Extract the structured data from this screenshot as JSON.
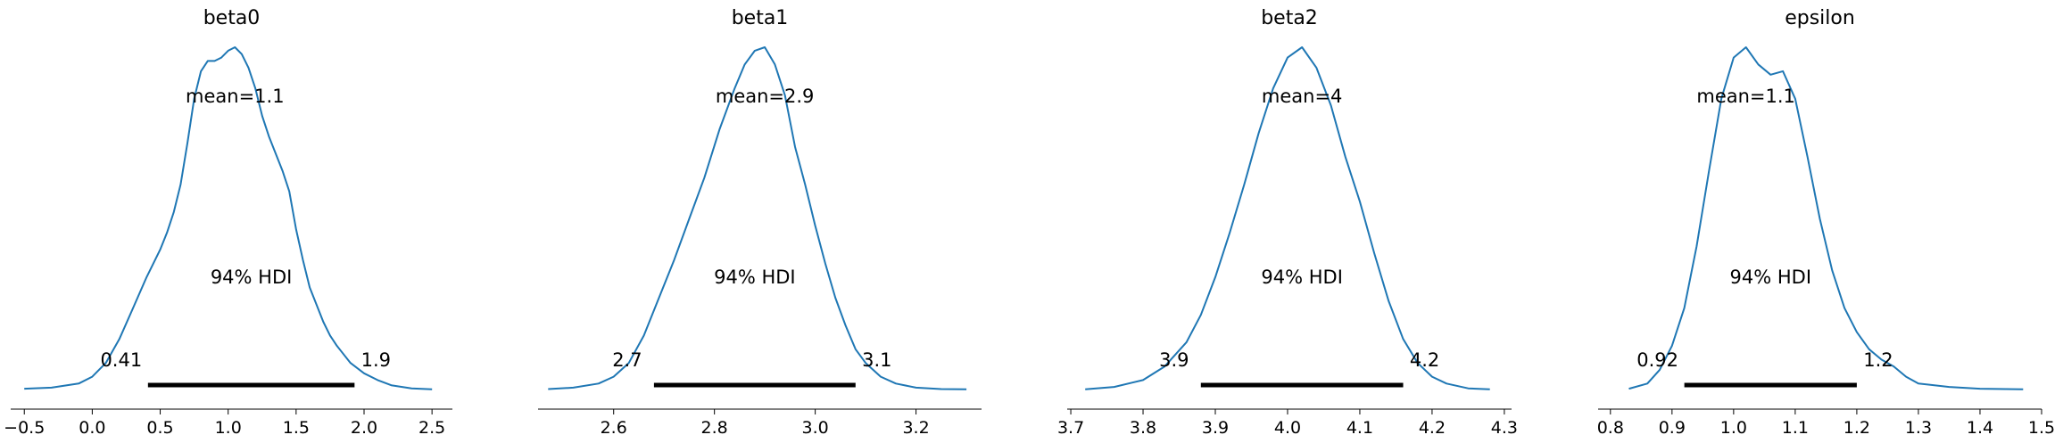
{
  "chart_data": [
    {
      "type": "area",
      "title": "beta0",
      "mean_label": "mean=1.1",
      "hdi_label": "94% HDI",
      "hdi": {
        "low": 0.41,
        "high": 1.93,
        "low_label": "0.41",
        "high_label": "1.9"
      },
      "xlim": [
        -0.6,
        2.65
      ],
      "ticks": [
        -0.5,
        0.0,
        0.5,
        1.0,
        1.5,
        2.0,
        2.5
      ],
      "tick_labels": [
        "−0.5",
        "0.0",
        "0.5",
        "1.0",
        "1.5",
        "2.0",
        "2.5"
      ],
      "density": {
        "x": [
          -0.5,
          -0.3,
          -0.1,
          0.0,
          0.1,
          0.2,
          0.3,
          0.4,
          0.5,
          0.55,
          0.6,
          0.65,
          0.7,
          0.75,
          0.8,
          0.85,
          0.9,
          0.95,
          1.0,
          1.05,
          1.1,
          1.15,
          1.2,
          1.25,
          1.3,
          1.35,
          1.4,
          1.45,
          1.5,
          1.55,
          1.6,
          1.65,
          1.7,
          1.75,
          1.8,
          1.9,
          2.0,
          2.1,
          2.2,
          2.35,
          2.5
        ],
        "y": [
          0.005,
          0.008,
          0.02,
          0.04,
          0.08,
          0.15,
          0.24,
          0.33,
          0.41,
          0.46,
          0.52,
          0.6,
          0.72,
          0.85,
          0.93,
          0.96,
          0.96,
          0.97,
          0.99,
          1.0,
          0.98,
          0.94,
          0.88,
          0.8,
          0.74,
          0.69,
          0.64,
          0.58,
          0.47,
          0.38,
          0.3,
          0.25,
          0.2,
          0.16,
          0.13,
          0.08,
          0.05,
          0.03,
          0.015,
          0.006,
          0.003
        ]
      }
    },
    {
      "type": "area",
      "title": "beta1",
      "mean_label": "mean=2.9",
      "hdi_label": "94% HDI",
      "hdi": {
        "low": 2.68,
        "high": 3.08,
        "low_label": "2.7",
        "high_label": "3.1"
      },
      "xlim": [
        2.45,
        3.33
      ],
      "ticks": [
        2.6,
        2.8,
        3.0,
        3.2
      ],
      "tick_labels": [
        "2.6",
        "2.8",
        "3.0",
        "3.2"
      ],
      "density": {
        "x": [
          2.47,
          2.52,
          2.57,
          2.6,
          2.63,
          2.66,
          2.69,
          2.72,
          2.75,
          2.78,
          2.81,
          2.84,
          2.86,
          2.88,
          2.9,
          2.92,
          2.94,
          2.96,
          2.98,
          3.0,
          3.02,
          3.04,
          3.06,
          3.08,
          3.1,
          3.13,
          3.16,
          3.2,
          3.25,
          3.3
        ],
        "y": [
          0.004,
          0.008,
          0.02,
          0.04,
          0.08,
          0.16,
          0.27,
          0.38,
          0.5,
          0.62,
          0.76,
          0.88,
          0.95,
          0.99,
          1.0,
          0.95,
          0.86,
          0.71,
          0.6,
          0.48,
          0.37,
          0.27,
          0.19,
          0.12,
          0.08,
          0.04,
          0.02,
          0.008,
          0.004,
          0.003
        ]
      }
    },
    {
      "type": "area",
      "title": "beta2",
      "mean_label": "mean=4",
      "hdi_label": "94% HDI",
      "hdi": {
        "low": 3.88,
        "high": 4.16,
        "low_label": "3.9",
        "high_label": "4.2"
      },
      "xlim": [
        3.695,
        4.31
      ],
      "ticks": [
        3.7,
        3.8,
        3.9,
        4.0,
        4.1,
        4.2,
        4.3
      ],
      "tick_labels": [
        "3.7",
        "3.8",
        "3.9",
        "4.0",
        "4.1",
        "4.2",
        "4.3"
      ],
      "density": {
        "x": [
          3.72,
          3.76,
          3.8,
          3.83,
          3.86,
          3.88,
          3.9,
          3.92,
          3.94,
          3.96,
          3.98,
          4.0,
          4.02,
          4.04,
          4.06,
          4.08,
          4.1,
          4.12,
          4.14,
          4.16,
          4.18,
          4.2,
          4.22,
          4.25,
          4.28
        ],
        "y": [
          0.003,
          0.01,
          0.03,
          0.07,
          0.14,
          0.22,
          0.33,
          0.46,
          0.6,
          0.75,
          0.88,
          0.97,
          1.0,
          0.94,
          0.83,
          0.68,
          0.55,
          0.4,
          0.26,
          0.15,
          0.08,
          0.04,
          0.02,
          0.006,
          0.003
        ]
      }
    },
    {
      "type": "area",
      "title": "epsilon",
      "mean_label": "mean=1.1",
      "hdi_label": "94% HDI",
      "hdi": {
        "low": 0.92,
        "high": 1.2,
        "low_label": "0.92",
        "high_label": "1.2"
      },
      "xlim": [
        0.78,
        1.5
      ],
      "ticks": [
        0.8,
        0.9,
        1.0,
        1.1,
        1.2,
        1.3,
        1.4,
        1.5
      ],
      "tick_labels": [
        "0.8",
        "0.9",
        "1.0",
        "1.1",
        "1.2",
        "1.3",
        "1.4",
        "1.5"
      ],
      "density": {
        "x": [
          0.83,
          0.86,
          0.88,
          0.9,
          0.92,
          0.94,
          0.96,
          0.98,
          1.0,
          1.02,
          1.04,
          1.06,
          1.08,
          1.1,
          1.12,
          1.14,
          1.16,
          1.18,
          1.2,
          1.22,
          1.24,
          1.26,
          1.28,
          1.3,
          1.35,
          1.4,
          1.47
        ],
        "y": [
          0.005,
          0.02,
          0.06,
          0.13,
          0.24,
          0.42,
          0.64,
          0.85,
          0.97,
          1.0,
          0.95,
          0.92,
          0.93,
          0.85,
          0.68,
          0.5,
          0.35,
          0.24,
          0.17,
          0.12,
          0.09,
          0.07,
          0.04,
          0.02,
          0.01,
          0.005,
          0.003
        ]
      }
    }
  ]
}
